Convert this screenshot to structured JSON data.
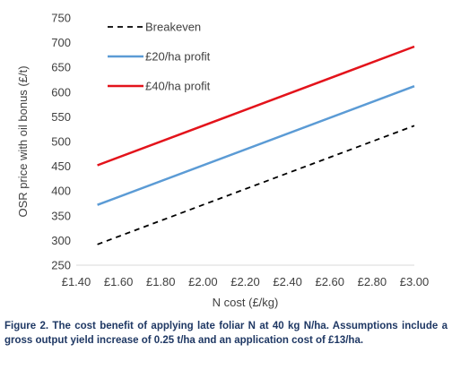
{
  "caption": "Figure 2. The cost benefit of applying late foliar N at 40 kg N/ha. Assumptions include a gross output yield increase of 0.25 t/ha and an application cost of £13/ha.",
  "chart_data": {
    "type": "line",
    "xlabel": "N cost (£/kg)",
    "ylabel": "OSR price with oil bonus (£/t)",
    "xlim": [
      1.4,
      3.0
    ],
    "ylim": [
      250,
      750
    ],
    "x_ticks": [
      1.4,
      1.6,
      1.8,
      2.0,
      2.2,
      2.4,
      2.6,
      2.8,
      3.0
    ],
    "x_tick_labels": [
      "£1.40",
      "£1.60",
      "£1.80",
      "£2.00",
      "£2.20",
      "£2.40",
      "£2.60",
      "£2.80",
      "£3.00"
    ],
    "y_ticks": [
      250,
      300,
      350,
      400,
      450,
      500,
      550,
      600,
      650,
      700,
      750
    ],
    "y_tick_labels": [
      "250",
      "300",
      "350",
      "400",
      "450",
      "500",
      "550",
      "600",
      "650",
      "700",
      "750"
    ],
    "grid": false,
    "legend": "top-left",
    "series": [
      {
        "name": "Breakeven",
        "color": "#000000",
        "dash": true,
        "x": [
          1.5,
          3.0
        ],
        "y": [
          292,
          532
        ]
      },
      {
        "name": "£20/ha profit",
        "color": "#5b9bd5",
        "dash": false,
        "x": [
          1.5,
          3.0
        ],
        "y": [
          372,
          612
        ]
      },
      {
        "name": "£40/ha profit",
        "color": "#e3131b",
        "dash": false,
        "x": [
          1.5,
          3.0
        ],
        "y": [
          452,
          692
        ]
      }
    ]
  }
}
